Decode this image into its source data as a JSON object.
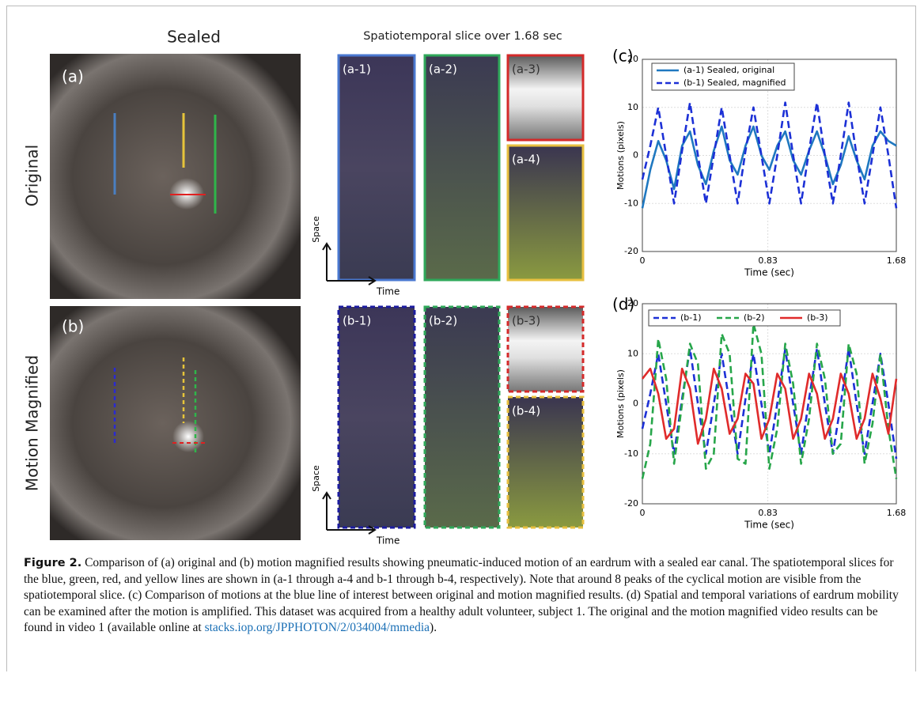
{
  "figure": {
    "col_sealed": "Sealed",
    "col_slice": "Spatiotemporal slice over 1.68 sec",
    "row_original": "Original",
    "row_magnified": "Motion Magnified",
    "panel_a": "(a)",
    "panel_b": "(b)",
    "slice_a1": "(a-1)",
    "slice_a2": "(a-2)",
    "slice_a3": "(a-3)",
    "slice_a4": "(a-4)",
    "slice_b1": "(b-1)",
    "slice_b2": "(b-2)",
    "slice_b3": "(b-3)",
    "slice_b4": "(b-4)",
    "space_a": "Space",
    "time_a": "Time",
    "space_b": "Space",
    "time_b": "Time"
  },
  "caption": {
    "label": "Figure 2.",
    "text": "Comparison of (a) original and (b) motion magnified results showing pneumatic-induced motion of an eardrum with a sealed ear canal. The spatiotemporal slices for the blue, green, red, and yellow lines are shown in (a-1 through a-4 and b-1 through b-4, respectively). Note that around 8 peaks of the cyclical motion are visible from the spatiotemporal slice. (c) Comparison of motions at the blue line of interest between original and motion magnified results. (d) Spatial and temporal variations of eardrum mobility can be examined after the motion is amplified. This dataset was acquired from a healthy adult volunteer, subject 1. The original and the motion magnified video results can be found in video 1 (available online at ",
    "link": "stacks.iop.org/JPPHOTON/2/034004/mmedia",
    "text_end": ")."
  },
  "chart_data": [
    {
      "type": "line",
      "title": "(c)",
      "x_label": "Time (sec)",
      "y_label": "Motions (pixels)",
      "xlim": [
        0,
        1.68
      ],
      "ylim": [
        -20,
        20
      ],
      "xticks": [
        0,
        0.83,
        1.68
      ],
      "yticks": [
        -20,
        -10,
        0,
        10,
        20
      ],
      "grid": true,
      "legend": "upper left",
      "x": [
        0,
        0.0525,
        0.105,
        0.1575,
        0.21,
        0.2625,
        0.315,
        0.3675,
        0.42,
        0.4725,
        0.525,
        0.5775,
        0.63,
        0.6825,
        0.735,
        0.7875,
        0.84,
        0.8925,
        0.945,
        0.9975,
        1.05,
        1.1025,
        1.155,
        1.2075,
        1.26,
        1.3125,
        1.365,
        1.4175,
        1.47,
        1.5225,
        1.575,
        1.6275,
        1.68
      ],
      "series": [
        {
          "name": "(a-1) Sealed, original",
          "color": "#1f78c0",
          "dash": false,
          "values": [
            -11,
            -3,
            3,
            -1,
            -7,
            2,
            5,
            -2,
            -6,
            1,
            6,
            -1,
            -4,
            2,
            6,
            0,
            -3,
            2,
            5,
            -1,
            -4,
            1,
            5,
            0,
            -6,
            -2,
            4,
            -1,
            -5,
            2,
            5,
            3,
            2
          ]
        },
        {
          "name": "(b-1) Sealed, magnified",
          "color": "#1c30d6",
          "dash": true,
          "values": [
            -5,
            2,
            10,
            0,
            -10,
            1,
            11,
            0,
            -10,
            0,
            10,
            0,
            -10,
            1,
            10,
            0,
            -10,
            0,
            11,
            0,
            -10,
            1,
            11,
            0,
            -10,
            0,
            11,
            0,
            -10,
            0,
            10,
            0,
            -11
          ]
        }
      ]
    },
    {
      "type": "line",
      "title": "(d)",
      "x_label": "Time (sec)",
      "y_label": "Motions (pixels)",
      "xlim": [
        0,
        1.68
      ],
      "ylim": [
        -20,
        20
      ],
      "xticks": [
        0,
        0.83,
        1.68
      ],
      "yticks": [
        -20,
        -10,
        0,
        10,
        20
      ],
      "grid": true,
      "legend": "upper left",
      "x": [
        0,
        0.0525,
        0.105,
        0.1575,
        0.21,
        0.2625,
        0.315,
        0.3675,
        0.42,
        0.4725,
        0.525,
        0.5775,
        0.63,
        0.6825,
        0.735,
        0.7875,
        0.84,
        0.8925,
        0.945,
        0.9975,
        1.05,
        1.1025,
        1.155,
        1.2075,
        1.26,
        1.3125,
        1.365,
        1.4175,
        1.47,
        1.5225,
        1.575,
        1.6275,
        1.68
      ],
      "series": [
        {
          "name": "(b-1)",
          "color": "#1c30d6",
          "dash": true,
          "values": [
            -5,
            2,
            10,
            0,
            -10,
            1,
            11,
            0,
            -10,
            0,
            10,
            0,
            -10,
            1,
            10,
            0,
            -10,
            0,
            11,
            0,
            -10,
            1,
            11,
            0,
            -10,
            0,
            11,
            0,
            -10,
            0,
            10,
            0,
            -11
          ]
        },
        {
          "name": "(b-2)",
          "color": "#27a64a",
          "dash": true,
          "values": [
            -15,
            -8,
            13,
            5,
            -12,
            0,
            12,
            8,
            -13,
            -10,
            14,
            10,
            -11,
            -12,
            16,
            10,
            -13,
            -5,
            12,
            4,
            -12,
            -3,
            12,
            5,
            -10,
            -8,
            12,
            6,
            -12,
            -4,
            10,
            -5,
            -15
          ]
        },
        {
          "name": "(b-3)",
          "color": "#e02b2b",
          "dash": false,
          "values": [
            5,
            7,
            2,
            -7,
            -5,
            7,
            3,
            -8,
            -3,
            7,
            3,
            -6,
            -3,
            6,
            4,
            -7,
            -3,
            6,
            3,
            -7,
            -3,
            6,
            2,
            -7,
            -3,
            6,
            2,
            -7,
            -3,
            6,
            1,
            -6,
            5
          ]
        }
      ]
    }
  ]
}
